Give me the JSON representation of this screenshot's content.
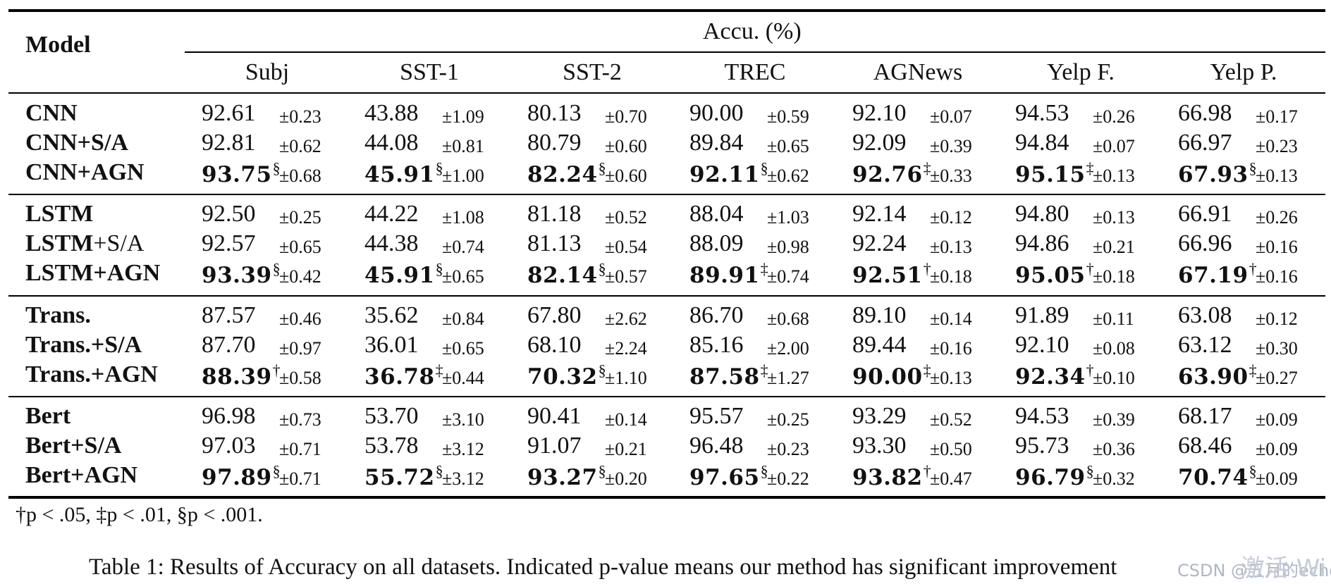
{
  "table": {
    "header": {
      "model_label": "Model",
      "group_label": "Accu. (%)",
      "datasets": [
        "Subj",
        "SST-1",
        "SST-2",
        "TREC",
        "AGNews",
        "Yelp F.",
        "Yelp P."
      ]
    },
    "groups": [
      {
        "rows": [
          {
            "model": "CNN",
            "suffix": "",
            "best": false,
            "cells": [
              {
                "value": "92.61",
                "sig": "",
                "sd": "±0.23"
              },
              {
                "value": "43.88",
                "sig": "",
                "sd": "±1.09"
              },
              {
                "value": "80.13",
                "sig": "",
                "sd": "±0.70"
              },
              {
                "value": "90.00",
                "sig": "",
                "sd": "±0.59"
              },
              {
                "value": "92.10",
                "sig": "",
                "sd": "±0.07"
              },
              {
                "value": "94.53",
                "sig": "",
                "sd": "±0.26"
              },
              {
                "value": "66.98",
                "sig": "",
                "sd": "±0.17"
              }
            ]
          },
          {
            "model": "CNN+S/A",
            "suffix": "",
            "best": false,
            "cells": [
              {
                "value": "92.81",
                "sig": "",
                "sd": "±0.62"
              },
              {
                "value": "44.08",
                "sig": "",
                "sd": "±0.81"
              },
              {
                "value": "80.79",
                "sig": "",
                "sd": "±0.60"
              },
              {
                "value": "89.84",
                "sig": "",
                "sd": "±0.65"
              },
              {
                "value": "92.09",
                "sig": "",
                "sd": "±0.39"
              },
              {
                "value": "94.84",
                "sig": "",
                "sd": "±0.07"
              },
              {
                "value": "66.97",
                "sig": "",
                "sd": "±0.23"
              }
            ]
          },
          {
            "model": "CNN+AGN",
            "suffix": "",
            "best": true,
            "cells": [
              {
                "value": "93.75",
                "sig": "§",
                "sd": "±0.68"
              },
              {
                "value": "45.91",
                "sig": "§",
                "sd": "±1.00"
              },
              {
                "value": "82.24",
                "sig": "§",
                "sd": "±0.60"
              },
              {
                "value": "92.11",
                "sig": "§",
                "sd": "±0.62"
              },
              {
                "value": "92.76",
                "sig": "‡",
                "sd": "±0.33"
              },
              {
                "value": "95.15",
                "sig": "‡",
                "sd": "±0.13"
              },
              {
                "value": "67.93",
                "sig": "§",
                "sd": "±0.13"
              }
            ]
          }
        ]
      },
      {
        "rows": [
          {
            "model": "LSTM",
            "suffix": "",
            "best": false,
            "cells": [
              {
                "value": "92.50",
                "sig": "",
                "sd": "±0.25"
              },
              {
                "value": "44.22",
                "sig": "",
                "sd": "±1.08"
              },
              {
                "value": "81.18",
                "sig": "",
                "sd": "±0.52"
              },
              {
                "value": "88.04",
                "sig": "",
                "sd": "±1.03"
              },
              {
                "value": "92.14",
                "sig": "",
                "sd": "±0.12"
              },
              {
                "value": "94.80",
                "sig": "",
                "sd": "±0.13"
              },
              {
                "value": "66.91",
                "sig": "",
                "sd": "±0.26"
              }
            ]
          },
          {
            "model": "LSTM",
            "suffix": "+S/A",
            "best": false,
            "cells": [
              {
                "value": "92.57",
                "sig": "",
                "sd": "±0.65"
              },
              {
                "value": "44.38",
                "sig": "",
                "sd": "±0.74"
              },
              {
                "value": "81.13",
                "sig": "",
                "sd": "±0.54"
              },
              {
                "value": "88.09",
                "sig": "",
                "sd": "±0.98"
              },
              {
                "value": "92.24",
                "sig": "",
                "sd": "±0.13"
              },
              {
                "value": "94.86",
                "sig": "",
                "sd": "±0.21"
              },
              {
                "value": "66.96",
                "sig": "",
                "sd": "±0.16"
              }
            ]
          },
          {
            "model": "LSTM+AGN",
            "suffix": "",
            "best": true,
            "cells": [
              {
                "value": "93.39",
                "sig": "§",
                "sd": "±0.42"
              },
              {
                "value": "45.91",
                "sig": "§",
                "sd": "±0.65"
              },
              {
                "value": "82.14",
                "sig": "§",
                "sd": "±0.57"
              },
              {
                "value": "89.91",
                "sig": "‡",
                "sd": "±0.74"
              },
              {
                "value": "92.51",
                "sig": "†",
                "sd": "±0.18"
              },
              {
                "value": "95.05",
                "sig": "†",
                "sd": "±0.18"
              },
              {
                "value": "67.19",
                "sig": "†",
                "sd": "±0.16"
              }
            ]
          }
        ]
      },
      {
        "rows": [
          {
            "model": "Trans.",
            "suffix": "",
            "best": false,
            "cells": [
              {
                "value": "87.57",
                "sig": "",
                "sd": "±0.46"
              },
              {
                "value": "35.62",
                "sig": "",
                "sd": "±0.84"
              },
              {
                "value": "67.80",
                "sig": "",
                "sd": "±2.62"
              },
              {
                "value": "86.70",
                "sig": "",
                "sd": "±0.68"
              },
              {
                "value": "89.10",
                "sig": "",
                "sd": "±0.14"
              },
              {
                "value": "91.89",
                "sig": "",
                "sd": "±0.11"
              },
              {
                "value": "63.08",
                "sig": "",
                "sd": "±0.12"
              }
            ]
          },
          {
            "model": "Trans.+S/A",
            "suffix": "",
            "best": false,
            "cells": [
              {
                "value": "87.70",
                "sig": "",
                "sd": "±0.97"
              },
              {
                "value": "36.01",
                "sig": "",
                "sd": "±0.65"
              },
              {
                "value": "68.10",
                "sig": "",
                "sd": "±2.24"
              },
              {
                "value": "85.16",
                "sig": "",
                "sd": "±2.00"
              },
              {
                "value": "89.44",
                "sig": "",
                "sd": "±0.16"
              },
              {
                "value": "92.10",
                "sig": "",
                "sd": "±0.08"
              },
              {
                "value": "63.12",
                "sig": "",
                "sd": "±0.30"
              }
            ]
          },
          {
            "model": "Trans.+AGN",
            "suffix": "",
            "best": true,
            "cells": [
              {
                "value": "88.39",
                "sig": "†",
                "sd": "±0.58"
              },
              {
                "value": "36.78",
                "sig": "‡",
                "sd": "±0.44"
              },
              {
                "value": "70.32",
                "sig": "§",
                "sd": "±1.10"
              },
              {
                "value": "87.58",
                "sig": "‡",
                "sd": "±1.27"
              },
              {
                "value": "90.00",
                "sig": "‡",
                "sd": "±0.13"
              },
              {
                "value": "92.34",
                "sig": "†",
                "sd": "±0.10"
              },
              {
                "value": "63.90",
                "sig": "‡",
                "sd": "±0.27"
              }
            ]
          }
        ]
      },
      {
        "rows": [
          {
            "model": "Bert",
            "suffix": "",
            "best": false,
            "cells": [
              {
                "value": "96.98",
                "sig": "",
                "sd": "±0.73"
              },
              {
                "value": "53.70",
                "sig": "",
                "sd": "±3.10"
              },
              {
                "value": "90.41",
                "sig": "",
                "sd": "±0.14"
              },
              {
                "value": "95.57",
                "sig": "",
                "sd": "±0.25"
              },
              {
                "value": "93.29",
                "sig": "",
                "sd": "±0.52"
              },
              {
                "value": "94.53",
                "sig": "",
                "sd": "±0.39"
              },
              {
                "value": "68.17",
                "sig": "",
                "sd": "±0.09"
              }
            ]
          },
          {
            "model": "Bert+S/A",
            "suffix": "",
            "best": false,
            "cells": [
              {
                "value": "97.03",
                "sig": "",
                "sd": "±0.71"
              },
              {
                "value": "53.78",
                "sig": "",
                "sd": "±3.12"
              },
              {
                "value": "91.07",
                "sig": "",
                "sd": "±0.21"
              },
              {
                "value": "96.48",
                "sig": "",
                "sd": "±0.23"
              },
              {
                "value": "93.30",
                "sig": "",
                "sd": "±0.50"
              },
              {
                "value": "95.73",
                "sig": "",
                "sd": "±0.36"
              },
              {
                "value": "68.46",
                "sig": "",
                "sd": "±0.09"
              }
            ]
          },
          {
            "model": "Bert+AGN",
            "suffix": "",
            "best": true,
            "cells": [
              {
                "value": "97.89",
                "sig": "§",
                "sd": "±0.71"
              },
              {
                "value": "55.72",
                "sig": "§",
                "sd": "±3.12"
              },
              {
                "value": "93.27",
                "sig": "§",
                "sd": "±0.20"
              },
              {
                "value": "97.65",
                "sig": "§",
                "sd": "±0.22"
              },
              {
                "value": "93.82",
                "sig": "†",
                "sd": "±0.47"
              },
              {
                "value": "96.79",
                "sig": "§",
                "sd": "±0.32"
              },
              {
                "value": "70.74",
                "sig": "§",
                "sd": "±0.09"
              }
            ]
          }
        ]
      }
    ]
  },
  "footnote": "†p < .05, ‡p < .01, §p < .001.",
  "caption": "Table 1: Results of Accuracy on all datasets. Indicated p-value means our method has significant improvement",
  "watermark": {
    "small": "CSDN @五月的echo",
    "large": "激活 Wi"
  }
}
